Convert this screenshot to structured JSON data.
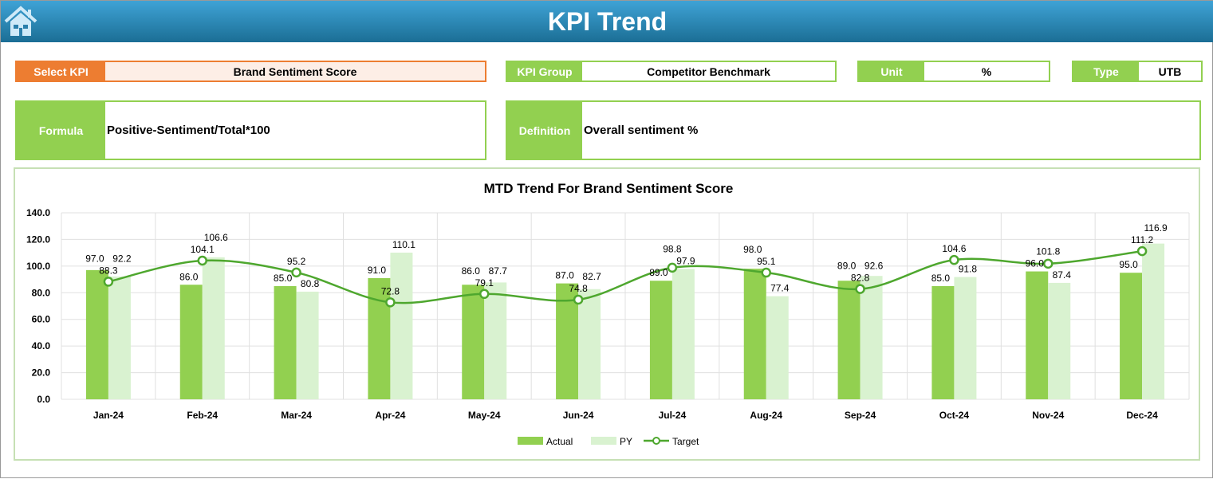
{
  "header": {
    "title": "KPI Trend",
    "home_icon": "home-icon"
  },
  "select_kpi": {
    "label": "Select KPI",
    "value": "Brand Sentiment Score"
  },
  "kpi_group": {
    "label": "KPI Group",
    "value": "Competitor Benchmark"
  },
  "unit": {
    "label": "Unit",
    "value": "%"
  },
  "type": {
    "label": "Type",
    "value": "UTB"
  },
  "formula": {
    "label": "Formula",
    "value": "Positive-Sentiment/Total*100"
  },
  "definition": {
    "label": "Definition",
    "value": "Overall sentiment %"
  },
  "colors": {
    "actual": "#92d050",
    "py": "#d9f2d0",
    "target": "#4ea72e",
    "accent": "#ed7d31"
  },
  "chart_data": {
    "type": "bar",
    "title": "MTD Trend For Brand Sentiment Score",
    "categories": [
      "Jan-24",
      "Feb-24",
      "Mar-24",
      "Apr-24",
      "May-24",
      "Jun-24",
      "Jul-24",
      "Aug-24",
      "Sep-24",
      "Oct-24",
      "Nov-24",
      "Dec-24"
    ],
    "ylim": [
      0,
      140
    ],
    "yticks": [
      "0.0",
      "20.0",
      "40.0",
      "60.0",
      "80.0",
      "100.0",
      "120.0",
      "140.0"
    ],
    "grid": true,
    "legend": "bottom",
    "series": [
      {
        "name": "Actual",
        "type": "bar",
        "values": [
          97.0,
          86.0,
          85.0,
          91.0,
          86.0,
          87.0,
          89.0,
          98.0,
          89.0,
          85.0,
          96.0,
          95.0
        ]
      },
      {
        "name": "PY",
        "type": "bar",
        "values": [
          92.2,
          106.6,
          80.8,
          110.1,
          87.7,
          82.7,
          97.9,
          77.4,
          92.6,
          91.8,
          87.4,
          116.9
        ]
      },
      {
        "name": "Target",
        "type": "line",
        "values": [
          88.3,
          104.1,
          95.2,
          72.8,
          79.1,
          74.8,
          98.8,
          95.1,
          82.8,
          104.6,
          101.8,
          111.2
        ]
      }
    ]
  }
}
